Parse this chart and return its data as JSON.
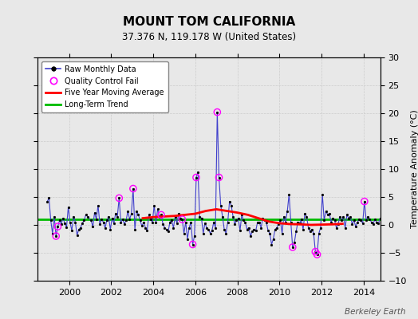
{
  "title": "MOUNT TOM CALIFORNIA",
  "subtitle": "37.376 N, 119.178 W (United States)",
  "ylabel": "Temperature Anomaly (°C)",
  "watermark": "Berkeley Earth",
  "ylim": [
    -10,
    30
  ],
  "xlim": [
    1998.5,
    2014.8
  ],
  "yticks": [
    -10,
    -5,
    0,
    5,
    10,
    15,
    20,
    25,
    30
  ],
  "xticks": [
    2000,
    2002,
    2004,
    2006,
    2008,
    2010,
    2012,
    2014
  ],
  "bg_color": "#e8e8e8",
  "raw_color": "#4040cc",
  "ma_color": "#ff0000",
  "trend_color": "#00bb00",
  "qc_color": "#ff00ff",
  "raw_data": [
    [
      1998.958,
      4.2
    ],
    [
      1999.042,
      4.8
    ],
    [
      1999.125,
      0.8
    ],
    [
      1999.208,
      -1.5
    ],
    [
      1999.292,
      1.5
    ],
    [
      1999.375,
      -2.0
    ],
    [
      1999.458,
      -0.3
    ],
    [
      1999.542,
      0.8
    ],
    [
      1999.625,
      0.2
    ],
    [
      1999.708,
      1.2
    ],
    [
      1999.792,
      0.3
    ],
    [
      1999.875,
      -0.4
    ],
    [
      1999.958,
      3.2
    ],
    [
      2000.042,
      0.5
    ],
    [
      2000.125,
      -1.0
    ],
    [
      2000.208,
      1.5
    ],
    [
      2000.292,
      0.5
    ],
    [
      2000.375,
      -1.8
    ],
    [
      2000.458,
      -0.8
    ],
    [
      2000.542,
      -0.5
    ],
    [
      2000.625,
      0.3
    ],
    [
      2000.708,
      0.8
    ],
    [
      2000.792,
      1.8
    ],
    [
      2000.875,
      1.5
    ],
    [
      2001.042,
      0.8
    ],
    [
      2001.125,
      -0.3
    ],
    [
      2001.208,
      2.2
    ],
    [
      2001.292,
      1.0
    ],
    [
      2001.375,
      3.5
    ],
    [
      2001.458,
      0.2
    ],
    [
      2001.542,
      1.0
    ],
    [
      2001.625,
      0.5
    ],
    [
      2001.708,
      -0.5
    ],
    [
      2001.792,
      0.8
    ],
    [
      2001.875,
      1.5
    ],
    [
      2001.958,
      -0.8
    ],
    [
      2002.042,
      1.2
    ],
    [
      2002.125,
      0.3
    ],
    [
      2002.208,
      2.0
    ],
    [
      2002.292,
      1.5
    ],
    [
      2002.375,
      4.8
    ],
    [
      2002.458,
      0.5
    ],
    [
      2002.542,
      1.0
    ],
    [
      2002.625,
      0.2
    ],
    [
      2002.708,
      0.8
    ],
    [
      2002.792,
      2.5
    ],
    [
      2002.875,
      1.0
    ],
    [
      2002.958,
      2.0
    ],
    [
      2003.042,
      6.5
    ],
    [
      2003.125,
      -0.8
    ],
    [
      2003.208,
      2.5
    ],
    [
      2003.292,
      1.8
    ],
    [
      2003.375,
      0.8
    ],
    [
      2003.458,
      -0.2
    ],
    [
      2003.542,
      0.5
    ],
    [
      2003.625,
      -0.5
    ],
    [
      2003.708,
      -1.0
    ],
    [
      2003.792,
      1.8
    ],
    [
      2003.875,
      1.0
    ],
    [
      2003.958,
      0.5
    ],
    [
      2004.042,
      3.5
    ],
    [
      2004.125,
      0.5
    ],
    [
      2004.208,
      2.8
    ],
    [
      2004.292,
      1.5
    ],
    [
      2004.375,
      1.8
    ],
    [
      2004.458,
      0.2
    ],
    [
      2004.542,
      -0.5
    ],
    [
      2004.625,
      -0.8
    ],
    [
      2004.708,
      -1.2
    ],
    [
      2004.792,
      0.5
    ],
    [
      2004.875,
      0.8
    ],
    [
      2004.958,
      -0.5
    ],
    [
      2005.042,
      1.5
    ],
    [
      2005.125,
      0.3
    ],
    [
      2005.208,
      2.0
    ],
    [
      2005.292,
      1.2
    ],
    [
      2005.375,
      1.0
    ],
    [
      2005.458,
      -1.5
    ],
    [
      2005.542,
      0.5
    ],
    [
      2005.625,
      -2.5
    ],
    [
      2005.708,
      -0.5
    ],
    [
      2005.792,
      0.5
    ],
    [
      2005.875,
      -3.5
    ],
    [
      2005.958,
      -2.0
    ],
    [
      2006.042,
      8.5
    ],
    [
      2006.125,
      9.5
    ],
    [
      2006.208,
      1.5
    ],
    [
      2006.292,
      1.2
    ],
    [
      2006.375,
      -1.5
    ],
    [
      2006.458,
      0.3
    ],
    [
      2006.542,
      -0.5
    ],
    [
      2006.625,
      -0.8
    ],
    [
      2006.708,
      -1.5
    ],
    [
      2006.792,
      -1.0
    ],
    [
      2006.875,
      0.5
    ],
    [
      2006.958,
      -0.5
    ],
    [
      2007.042,
      20.2
    ],
    [
      2007.125,
      8.5
    ],
    [
      2007.208,
      3.5
    ],
    [
      2007.292,
      1.5
    ],
    [
      2007.375,
      -0.8
    ],
    [
      2007.458,
      -1.5
    ],
    [
      2007.542,
      0.5
    ],
    [
      2007.625,
      4.2
    ],
    [
      2007.708,
      3.5
    ],
    [
      2007.792,
      1.5
    ],
    [
      2007.875,
      0.2
    ],
    [
      2007.958,
      0.8
    ],
    [
      2008.042,
      1.2
    ],
    [
      2008.125,
      -1.0
    ],
    [
      2008.208,
      1.8
    ],
    [
      2008.292,
      0.8
    ],
    [
      2008.375,
      0.5
    ],
    [
      2008.458,
      -0.8
    ],
    [
      2008.542,
      -0.5
    ],
    [
      2008.625,
      -2.0
    ],
    [
      2008.708,
      -1.2
    ],
    [
      2008.792,
      -0.8
    ],
    [
      2008.875,
      -1.0
    ],
    [
      2008.958,
      0.5
    ],
    [
      2009.042,
      0.5
    ],
    [
      2009.125,
      -0.5
    ],
    [
      2009.208,
      1.2
    ],
    [
      2009.292,
      0.8
    ],
    [
      2009.375,
      0.5
    ],
    [
      2009.458,
      -1.0
    ],
    [
      2009.542,
      -1.5
    ],
    [
      2009.625,
      -3.5
    ],
    [
      2009.708,
      -2.5
    ],
    [
      2009.792,
      -0.8
    ],
    [
      2009.875,
      -0.5
    ],
    [
      2009.958,
      0.2
    ],
    [
      2010.042,
      0.8
    ],
    [
      2010.125,
      -1.5
    ],
    [
      2010.208,
      1.5
    ],
    [
      2010.292,
      0.5
    ],
    [
      2010.375,
      2.5
    ],
    [
      2010.458,
      5.5
    ],
    [
      2010.542,
      0.5
    ],
    [
      2010.625,
      -4.0
    ],
    [
      2010.708,
      -3.2
    ],
    [
      2010.792,
      -1.2
    ],
    [
      2010.875,
      0.5
    ],
    [
      2010.958,
      0.3
    ],
    [
      2011.042,
      1.0
    ],
    [
      2011.125,
      -0.8
    ],
    [
      2011.208,
      2.0
    ],
    [
      2011.292,
      1.5
    ],
    [
      2011.375,
      -0.5
    ],
    [
      2011.458,
      -1.2
    ],
    [
      2011.542,
      -0.8
    ],
    [
      2011.625,
      -1.5
    ],
    [
      2011.708,
      -4.8
    ],
    [
      2011.792,
      -5.3
    ],
    [
      2011.875,
      -1.5
    ],
    [
      2011.958,
      -0.5
    ],
    [
      2012.042,
      5.5
    ],
    [
      2012.125,
      0.8
    ],
    [
      2012.208,
      2.5
    ],
    [
      2012.292,
      1.8
    ],
    [
      2012.375,
      2.0
    ],
    [
      2012.458,
      0.5
    ],
    [
      2012.542,
      1.2
    ],
    [
      2012.625,
      0.8
    ],
    [
      2012.708,
      -0.5
    ],
    [
      2012.792,
      0.2
    ],
    [
      2012.875,
      1.5
    ],
    [
      2012.958,
      0.8
    ],
    [
      2013.042,
      1.5
    ],
    [
      2013.125,
      -0.5
    ],
    [
      2013.208,
      1.8
    ],
    [
      2013.292,
      1.2
    ],
    [
      2013.375,
      1.5
    ],
    [
      2013.458,
      0.2
    ],
    [
      2013.542,
      0.8
    ],
    [
      2013.625,
      -0.3
    ],
    [
      2013.708,
      0.5
    ],
    [
      2013.792,
      1.0
    ],
    [
      2013.875,
      0.8
    ],
    [
      2013.958,
      0.3
    ],
    [
      2014.042,
      4.2
    ],
    [
      2014.125,
      0.8
    ],
    [
      2014.208,
      1.5
    ],
    [
      2014.292,
      1.0
    ],
    [
      2014.375,
      0.5
    ],
    [
      2014.458,
      0.2
    ],
    [
      2014.542,
      1.0
    ],
    [
      2014.625,
      0.5
    ],
    [
      2014.708,
      0.3
    ],
    [
      2014.792,
      1.2
    ]
  ],
  "qc_fail_points": [
    [
      1999.375,
      -2.0
    ],
    [
      1999.458,
      -0.3
    ],
    [
      2002.375,
      4.8
    ],
    [
      2003.042,
      6.5
    ],
    [
      2004.375,
      1.8
    ],
    [
      2005.375,
      1.0
    ],
    [
      2005.875,
      -3.5
    ],
    [
      2006.042,
      8.5
    ],
    [
      2007.042,
      20.2
    ],
    [
      2007.125,
      8.5
    ],
    [
      2010.625,
      -4.0
    ],
    [
      2011.708,
      -4.8
    ],
    [
      2011.792,
      -5.3
    ],
    [
      2014.042,
      4.2
    ]
  ],
  "moving_avg": [
    [
      2003.5,
      1.2
    ],
    [
      2004.0,
      1.4
    ],
    [
      2004.5,
      1.5
    ],
    [
      2005.0,
      1.6
    ],
    [
      2005.5,
      1.8
    ],
    [
      2006.0,
      2.0
    ],
    [
      2006.5,
      2.5
    ],
    [
      2007.0,
      2.8
    ],
    [
      2007.5,
      2.5
    ],
    [
      2008.0,
      2.2
    ],
    [
      2008.5,
      1.8
    ],
    [
      2009.0,
      1.2
    ],
    [
      2009.5,
      0.6
    ],
    [
      2010.0,
      0.3
    ],
    [
      2010.5,
      0.15
    ],
    [
      2011.0,
      0.1
    ],
    [
      2011.5,
      0.0
    ],
    [
      2012.0,
      0.05
    ],
    [
      2012.5,
      0.1
    ],
    [
      2013.0,
      0.2
    ]
  ],
  "trend_y": 1.0
}
